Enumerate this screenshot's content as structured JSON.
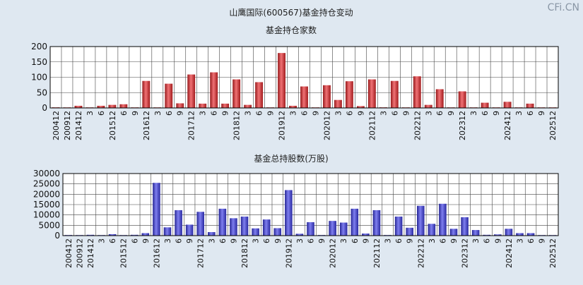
{
  "title": "山鹰国际(600567)基金持仓变动",
  "watermark": "CFi.CN",
  "chart_data": [
    {
      "type": "bar",
      "title": "基金持仓家数",
      "ylim": [
        0,
        200
      ],
      "yticks": [
        0,
        50,
        100,
        150,
        200
      ],
      "color": "#e8262a",
      "x": [
        "200412",
        "200912",
        "201412",
        "3",
        "6",
        "201512",
        "6",
        "9",
        "201612",
        "3",
        "6",
        "9",
        "201712",
        "3",
        "6",
        "9",
        "201812",
        "3",
        "6",
        "9",
        "201912",
        "3",
        "6",
        "9",
        "202012",
        "3",
        "6",
        "9",
        "202112",
        "3",
        "6",
        "9",
        "202212",
        "3",
        "6",
        "9",
        "202312",
        "3",
        "6",
        "9",
        "202412",
        "3",
        "6",
        "9",
        "202512"
      ],
      "values": [
        2,
        1,
        7,
        1,
        7,
        10,
        12,
        1,
        88,
        1,
        79,
        15,
        109,
        14,
        116,
        14,
        93,
        10,
        84,
        1,
        179,
        7,
        70,
        1,
        74,
        26,
        87,
        6,
        93,
        2,
        88,
        1,
        103,
        10,
        61,
        1,
        54,
        1,
        17,
        1,
        20,
        1,
        14,
        1,
        1
      ]
    },
    {
      "type": "bar",
      "title": "基金总持股数(万股)",
      "ylim": [
        0,
        30000
      ],
      "yticks": [
        0,
        5000,
        10000,
        15000,
        20000,
        25000,
        30000
      ],
      "color": "#3a3ae6",
      "x": [
        "200412",
        "200912",
        "201412",
        "3",
        "6",
        "201512",
        "6",
        "9",
        "201612",
        "3",
        "6",
        "9",
        "201712",
        "3",
        "6",
        "9",
        "201812",
        "3",
        "6",
        "9",
        "201912",
        "3",
        "6",
        "9",
        "202012",
        "3",
        "6",
        "9",
        "202112",
        "3",
        "6",
        "9",
        "202212",
        "3",
        "6",
        "9",
        "202312",
        "3",
        "6",
        "9",
        "202412",
        "3",
        "6",
        "9",
        "202512"
      ],
      "values": [
        300,
        100,
        400,
        150,
        700,
        200,
        400,
        1200,
        25500,
        4000,
        12300,
        5300,
        11500,
        1700,
        13000,
        8400,
        9200,
        3500,
        7800,
        3600,
        22000,
        900,
        6500,
        300,
        7100,
        6300,
        13000,
        1000,
        12300,
        300,
        9200,
        3800,
        14400,
        5700,
        15400,
        3300,
        8900,
        2700,
        400,
        600,
        3300,
        1200,
        1200,
        200,
        100
      ]
    }
  ]
}
